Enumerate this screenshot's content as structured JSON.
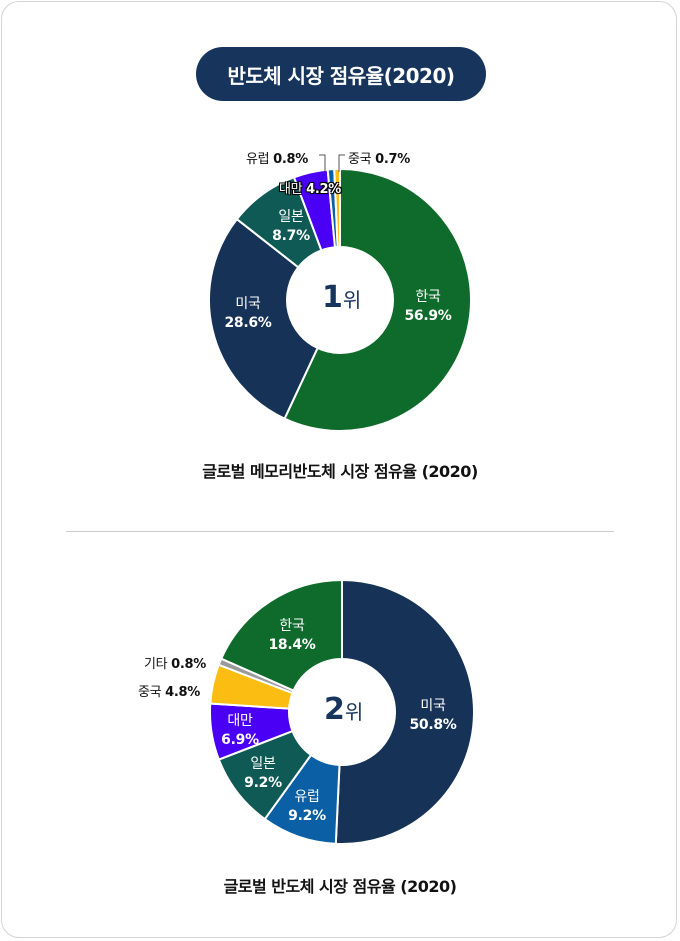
{
  "header": {
    "title": "반도체 시장 점유율(2020)"
  },
  "charts": [
    {
      "caption": "글로벌 메모리반도체 시장 점유율 (2020)",
      "rank_number": "1",
      "rank_suffix": "위",
      "labels": {
        "korea": {
          "name": "한국",
          "value": "56.9%"
        },
        "usa": {
          "name": "미국",
          "value": "28.6%"
        },
        "japan": {
          "name": "일본",
          "value": "8.7%"
        },
        "taiwan": {
          "name": "대만",
          "value": "4.2%"
        },
        "europe": {
          "name": "유럽",
          "value": "0.8%"
        },
        "china": {
          "name": "중국",
          "value": "0.7%"
        }
      }
    },
    {
      "caption": "글로벌 반도체 시장 점유율 (2020)",
      "rank_number": "2",
      "rank_suffix": "위",
      "labels": {
        "usa": {
          "name": "미국",
          "value": "50.8%"
        },
        "europe": {
          "name": "유럽",
          "value": "9.2%"
        },
        "japan": {
          "name": "일본",
          "value": "9.2%"
        },
        "taiwan": {
          "name": "대만",
          "value": "6.9%"
        },
        "china": {
          "name": "중국",
          "value": "4.8%"
        },
        "other": {
          "name": "기타",
          "value": "0.8%"
        },
        "korea": {
          "name": "한국",
          "value": "18.4%"
        }
      }
    }
  ],
  "colors": {
    "korea": "#0f6b2b",
    "usa": "#163256",
    "japan": "#0f5a55",
    "taiwan": "#4a00f5",
    "europe": "#0a5fa5",
    "china": "#fbbd12",
    "other": "#9a9a9a",
    "title_bg": "#17355c"
  },
  "chart_data": [
    {
      "type": "pie",
      "title": "글로벌 메모리반도체 시장 점유율 (2020)",
      "center_text": "1위",
      "categories": [
        "한국",
        "미국",
        "일본",
        "대만",
        "유럽",
        "중국"
      ],
      "values": [
        56.9,
        28.6,
        8.7,
        4.2,
        0.8,
        0.7
      ],
      "unit": "%",
      "donut": true
    },
    {
      "type": "pie",
      "title": "글로벌 반도체 시장 점유율 (2020)",
      "center_text": "2위",
      "categories": [
        "미국",
        "유럽",
        "일본",
        "대만",
        "중국",
        "기타",
        "한국"
      ],
      "values": [
        50.8,
        9.2,
        9.2,
        6.9,
        4.8,
        0.8,
        18.4
      ],
      "unit": "%",
      "donut": true
    }
  ]
}
